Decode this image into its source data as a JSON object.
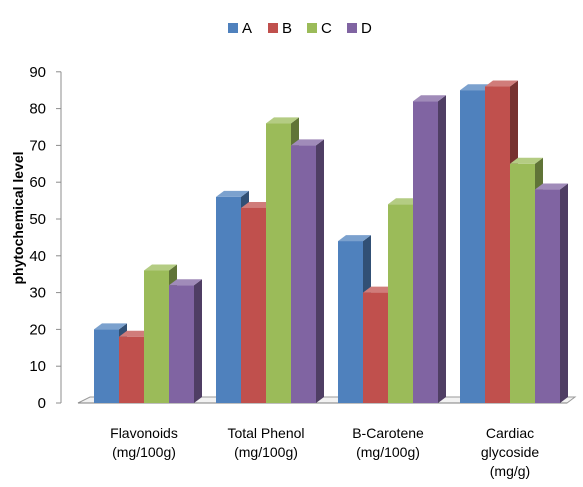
{
  "chart_data": {
    "type": "bar",
    "categories": [
      [
        "Flavonoids",
        "(mg/100g)"
      ],
      [
        "Total Phenol",
        "(mg/100g)"
      ],
      [
        "B-Carotene",
        "(mg/100g)"
      ],
      [
        "Cardiac",
        "glycoside",
        "(mg/g)"
      ]
    ],
    "series": [
      {
        "name": "A",
        "color": "#4F81BD",
        "values": [
          20,
          56,
          44,
          85
        ]
      },
      {
        "name": "B",
        "color": "#C0504D",
        "values": [
          18,
          53,
          30,
          86
        ]
      },
      {
        "name": "C",
        "color": "#9BBB59",
        "values": [
          36,
          76,
          54,
          65
        ]
      },
      {
        "name": "D",
        "color": "#8064A2",
        "values": [
          32,
          70,
          82,
          58
        ]
      }
    ],
    "ylabel": "phytochemical level",
    "ylim": [
      0,
      90
    ],
    "yticks": [
      0,
      10,
      20,
      30,
      40,
      50,
      60,
      70,
      80,
      90
    ],
    "legend_position": "top",
    "gridlines": false,
    "style": "3d-clustered-column"
  }
}
